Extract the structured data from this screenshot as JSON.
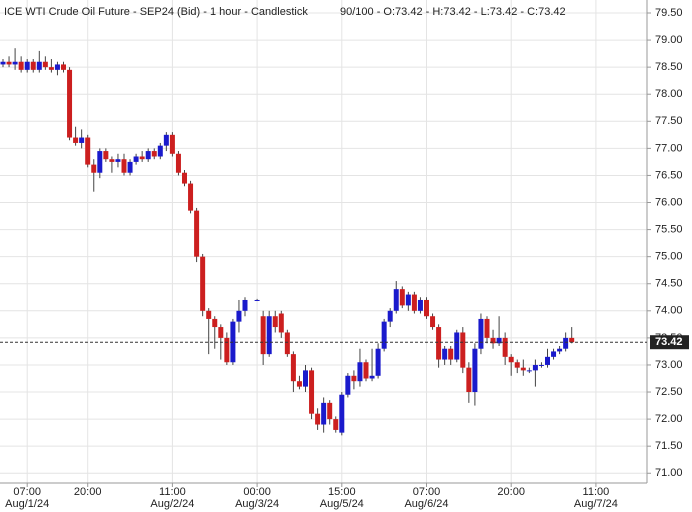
{
  "chart_data": {
    "type": "candlestick",
    "title": "ICE WTI Crude Oil Future - SEP24 (Bid) - 1 hour - Candlestick",
    "legend_text": "90/100 - O:73.42 - H:73.42 - L:73.42 - C:73.42",
    "categories": [
      null,
      null,
      null,
      null,
      "07:00",
      null,
      null,
      null,
      null,
      null,
      null,
      null,
      null,
      null,
      "20:00",
      null,
      null,
      null,
      null,
      null,
      null,
      null,
      null,
      null,
      null,
      null,
      null,
      null,
      "11:00",
      null,
      null,
      null,
      null,
      null,
      null,
      null,
      null,
      null,
      null,
      null,
      null,
      null,
      "00:00",
      null,
      null,
      null,
      null,
      null,
      null,
      null,
      null,
      null,
      null,
      null,
      null,
      null,
      "15:00",
      null,
      null,
      null,
      null,
      null,
      null,
      null,
      null,
      null,
      null,
      null,
      null,
      null,
      "07:00",
      null,
      null,
      null,
      null,
      null,
      null,
      null,
      null,
      null,
      null,
      null,
      null,
      null,
      "20:00",
      null,
      null,
      null,
      null,
      null,
      null,
      null,
      null,
      null,
      null,
      null,
      null,
      null,
      "11:00",
      null
    ],
    "dates": [
      null,
      null,
      null,
      null,
      "Aug/1/24",
      null,
      null,
      null,
      null,
      null,
      null,
      null,
      null,
      null,
      null,
      null,
      null,
      null,
      null,
      null,
      null,
      null,
      null,
      null,
      null,
      null,
      null,
      null,
      "Aug/2/24",
      null,
      null,
      null,
      null,
      null,
      null,
      null,
      null,
      null,
      null,
      null,
      null,
      null,
      "Aug/3/24",
      null,
      null,
      null,
      null,
      null,
      null,
      null,
      null,
      null,
      null,
      null,
      null,
      null,
      "Aug/5/24",
      null,
      null,
      null,
      null,
      null,
      null,
      null,
      null,
      null,
      null,
      null,
      null,
      null,
      "Aug/6/24",
      null,
      null,
      null,
      null,
      null,
      null,
      null,
      null,
      null,
      null,
      null,
      null,
      null,
      null,
      null,
      null,
      null,
      null,
      null,
      null,
      null,
      null,
      null,
      null,
      null,
      null,
      null,
      "Aug/7/24",
      null
    ],
    "open": [
      78.55,
      78.6,
      78.55,
      78.6,
      78.45,
      78.6,
      78.45,
      78.6,
      78.5,
      78.45,
      78.55,
      78.45,
      77.2,
      77.1,
      77.2,
      76.7,
      76.55,
      76.95,
      76.8,
      76.75,
      76.8,
      76.55,
      76.75,
      76.85,
      76.8,
      76.95,
      76.85,
      77.05,
      77.25,
      76.9,
      76.55,
      76.35,
      75.85,
      75.0,
      74.0,
      73.85,
      73.7,
      73.5,
      73.05,
      73.8,
      74.0,
      null,
      74.2,
      73.9,
      73.2,
      73.9,
      73.95,
      73.6,
      73.2,
      72.7,
      72.6,
      72.9,
      72.1,
      71.9,
      72.3,
      72.0,
      71.75,
      72.45,
      72.8,
      72.7,
      73.05,
      72.75,
      72.8,
      73.3,
      73.8,
      74.0,
      74.4,
      74.1,
      74.3,
      74.0,
      74.2,
      73.9,
      73.7,
      73.1,
      73.3,
      73.1,
      73.6,
      72.95,
      72.5,
      73.3,
      73.85,
      73.5,
      73.4,
      73.5,
      73.15,
      73.05,
      72.95,
      72.9,
      72.9,
      73.0,
      73.0,
      73.15,
      73.25,
      73.3,
      73.5,
      null,
      null,
      null,
      null,
      null
    ],
    "high": [
      78.65,
      78.7,
      78.85,
      78.7,
      78.65,
      78.65,
      78.8,
      78.7,
      78.65,
      78.6,
      78.6,
      78.5,
      77.4,
      77.35,
      77.25,
      76.8,
      77.0,
      77.0,
      76.85,
      76.9,
      76.9,
      76.8,
      76.9,
      76.95,
      77.0,
      77.0,
      77.1,
      77.3,
      77.3,
      76.95,
      76.6,
      76.4,
      75.9,
      75.05,
      74.05,
      73.9,
      73.75,
      73.6,
      73.85,
      74.2,
      74.25,
      null,
      74.22,
      74.0,
      74.0,
      74.0,
      74.0,
      73.65,
      73.25,
      72.8,
      73.0,
      72.95,
      72.2,
      72.4,
      72.35,
      72.05,
      72.5,
      72.85,
      72.9,
      73.3,
      73.1,
      73.3,
      73.4,
      73.85,
      74.05,
      74.55,
      74.45,
      74.35,
      74.35,
      74.25,
      74.25,
      73.95,
      73.75,
      73.35,
      73.35,
      73.65,
      73.7,
      73.05,
      73.4,
      73.95,
      73.9,
      73.65,
      73.9,
      73.6,
      73.2,
      73.1,
      73.1,
      72.95,
      73.1,
      73.05,
      73.3,
      73.3,
      73.35,
      73.6,
      73.7,
      null,
      null,
      null,
      null,
      null
    ],
    "low": [
      78.5,
      78.5,
      78.45,
      78.4,
      78.4,
      78.4,
      78.4,
      78.45,
      78.4,
      78.35,
      78.4,
      77.15,
      77.05,
      77.0,
      76.65,
      76.2,
      76.45,
      76.75,
      76.55,
      76.65,
      76.5,
      76.5,
      76.7,
      76.75,
      76.75,
      76.8,
      76.8,
      76.95,
      76.85,
      76.5,
      76.3,
      75.8,
      74.9,
      73.9,
      73.2,
      73.3,
      73.1,
      73.0,
      73.0,
      73.6,
      73.9,
      null,
      74.18,
      73.0,
      73.15,
      73.6,
      73.5,
      73.15,
      72.5,
      72.55,
      72.5,
      72.0,
      71.8,
      71.75,
      71.9,
      71.75,
      71.7,
      72.4,
      72.55,
      72.6,
      72.7,
      72.7,
      72.75,
      73.25,
      73.7,
      73.95,
      74.05,
      74.0,
      73.95,
      73.95,
      73.85,
      73.65,
      72.95,
      73.0,
      73.0,
      73.05,
      72.85,
      72.3,
      72.25,
      73.2,
      73.4,
      73.3,
      73.35,
      73.0,
      72.8,
      72.85,
      72.8,
      72.85,
      72.6,
      72.95,
      72.95,
      73.1,
      73.2,
      73.25,
      73.4,
      null,
      null,
      null,
      null,
      null
    ],
    "close": [
      78.6,
      78.55,
      78.6,
      78.45,
      78.6,
      78.45,
      78.6,
      78.5,
      78.45,
      78.55,
      78.45,
      77.2,
      77.1,
      77.2,
      76.7,
      76.55,
      76.95,
      76.8,
      76.75,
      76.8,
      76.55,
      76.75,
      76.85,
      76.8,
      76.95,
      76.85,
      77.05,
      77.25,
      76.9,
      76.55,
      76.35,
      75.85,
      75.0,
      74.0,
      73.85,
      73.7,
      73.5,
      73.05,
      73.8,
      74.0,
      74.2,
      null,
      74.2,
      73.2,
      73.9,
      73.7,
      73.6,
      73.2,
      72.7,
      72.6,
      72.9,
      72.1,
      71.9,
      72.3,
      72.0,
      71.8,
      72.45,
      72.8,
      72.7,
      73.05,
      72.75,
      72.8,
      73.3,
      73.8,
      74.0,
      74.4,
      74.1,
      74.3,
      74.0,
      74.2,
      73.9,
      73.7,
      73.1,
      73.3,
      73.1,
      73.6,
      72.95,
      72.5,
      73.3,
      73.85,
      73.5,
      73.4,
      73.5,
      73.15,
      73.05,
      72.95,
      72.9,
      72.9,
      73.0,
      73.0,
      73.15,
      73.25,
      73.3,
      73.5,
      73.42,
      null,
      null,
      null,
      null,
      null
    ],
    "up_color": "#1a1acc",
    "down_color": "#cc1f1f",
    "last_price": 73.42,
    "ylim": [
      70.82,
      79.74
    ],
    "yticks": [
      {
        "value": 71,
        "label": "71.00"
      },
      {
        "value": 71.5,
        "label": "71.50"
      },
      {
        "value": 72,
        "label": "72.00"
      },
      {
        "value": 72.5,
        "label": "72.50"
      },
      {
        "value": 73,
        "label": "73.00"
      },
      {
        "value": 73.5,
        "label": "73.50"
      },
      {
        "value": 74,
        "label": "74.00"
      },
      {
        "value": 74.5,
        "label": "74.50"
      },
      {
        "value": 75,
        "label": "75.00"
      },
      {
        "value": 75.5,
        "label": "75.50"
      },
      {
        "value": 76,
        "label": "76.00"
      },
      {
        "value": 76.5,
        "label": "76.50"
      },
      {
        "value": 77,
        "label": "77.00"
      },
      {
        "value": 77.5,
        "label": "77.50"
      },
      {
        "value": 78,
        "label": "78.00"
      },
      {
        "value": 78.5,
        "label": "78.50"
      },
      {
        "value": 79,
        "label": "79.00"
      },
      {
        "value": 79.5,
        "label": "79.50"
      }
    ],
    "grid": true
  }
}
